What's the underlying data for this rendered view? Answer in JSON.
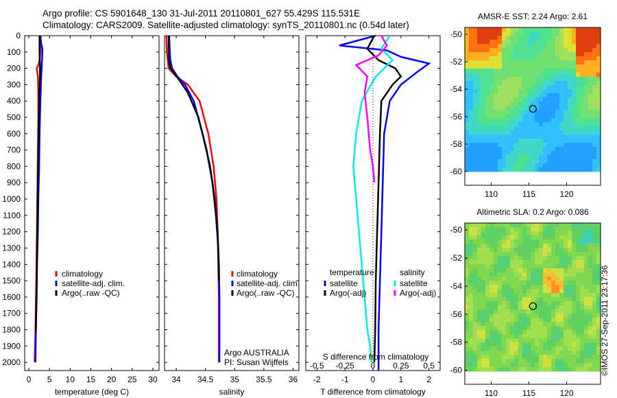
{
  "header": {
    "line1": "Argo profile: CS 5901648_130 31-Jul-2011 20110801_627 55.429S 115.531E",
    "line2": "Climatology: CARS2009. Satellite-adjusted climatology: synTS_20110801.nc (0.54d later)"
  },
  "credit": "©IMOS 27-Sep-2011 23:17:36",
  "chart_data": [
    {
      "type": "line",
      "panel": "temperature",
      "xlabel": "temperature (deg C)",
      "ylabel": "",
      "xlim": [
        -1,
        31.5
      ],
      "ylim": [
        2050,
        0
      ],
      "xticks": [
        0,
        5,
        10,
        15,
        20,
        25,
        30
      ],
      "yticks": [
        0,
        100,
        200,
        300,
        400,
        500,
        600,
        700,
        800,
        900,
        1000,
        1100,
        1200,
        1300,
        1400,
        1500,
        1600,
        1700,
        1800,
        1900,
        2000
      ],
      "legend": [
        "climatology",
        "satellite-adj. clim.",
        "Argo(..raw -QC)"
      ],
      "series": [
        {
          "name": "climatology",
          "color": "#ff0000",
          "x": [
            2.8,
            2.8,
            2.6,
            2.3,
            1.9,
            2.2,
            2.3,
            2.3,
            2.2,
            2.1,
            2.0,
            1.9,
            1.8,
            1.6,
            1.4
          ],
          "y": [
            0,
            100,
            150,
            180,
            200,
            250,
            350,
            500,
            700,
            900,
            1100,
            1300,
            1500,
            1800,
            2000
          ]
        },
        {
          "name": "satellite-adj. clim.",
          "color": "#0000ff",
          "x": [
            2.8,
            3.0,
            3.3,
            3.2,
            3.0,
            2.8,
            2.6,
            2.5,
            2.3,
            2.2,
            2.0,
            1.9,
            1.7,
            1.6
          ],
          "y": [
            0,
            50,
            80,
            150,
            250,
            400,
            600,
            800,
            1000,
            1200,
            1400,
            1600,
            1800,
            2000
          ]
        },
        {
          "name": "Argo(..raw -QC)",
          "color": "#000000",
          "x": [
            2.6,
            2.6,
            2.7,
            2.7,
            2.5,
            2.4,
            2.3,
            2.2,
            2.1,
            2.0,
            1.9,
            1.7
          ],
          "y": [
            0,
            100,
            180,
            250,
            350,
            500,
            700,
            900,
            1100,
            1300,
            1500,
            1820
          ]
        }
      ]
    },
    {
      "type": "line",
      "panel": "salinity",
      "xlabel": "salinity",
      "xlim": [
        33.8,
        36.1
      ],
      "ylim": [
        2050,
        0
      ],
      "xticks": [
        34,
        34.5,
        35,
        35.5,
        36
      ],
      "xticklabels": [
        "34",
        "34.5",
        "35",
        "35.5",
        "36"
      ],
      "legend": [
        "climatology",
        "satellite-adj. clim.",
        "Argo(..raw -QC)"
      ],
      "annotation": [
        "Argo AUSTRALIA",
        "PI: Susan Wijffels"
      ],
      "series": [
        {
          "name": "climatology",
          "color": "#ff0000",
          "x": [
            33.83,
            33.84,
            33.87,
            34.0,
            34.2,
            34.4,
            34.55,
            34.64,
            34.69,
            34.71,
            34.72,
            34.73,
            34.73,
            34.73
          ],
          "y": [
            0,
            100,
            200,
            250,
            300,
            400,
            600,
            800,
            1000,
            1200,
            1400,
            1600,
            1800,
            2000
          ]
        },
        {
          "name": "satellite-adj. clim.",
          "color": "#0000ff",
          "x": [
            33.88,
            33.89,
            33.9,
            33.93,
            34.02,
            34.15,
            34.3,
            34.45,
            34.58,
            34.66,
            34.71,
            34.73,
            34.74,
            34.74
          ],
          "y": [
            0,
            100,
            150,
            200,
            250,
            300,
            400,
            600,
            800,
            1000,
            1200,
            1400,
            1600,
            2000
          ]
        },
        {
          "name": "Argo(..raw -QC)",
          "color": "#000000",
          "x": [
            33.87,
            33.87,
            33.9,
            34.05,
            34.2,
            34.38,
            34.52,
            34.62,
            34.68,
            34.72,
            34.73
          ],
          "y": [
            0,
            150,
            200,
            270,
            350,
            500,
            700,
            900,
            1100,
            1300,
            1500
          ]
        }
      ]
    },
    {
      "type": "line",
      "panel": "difference",
      "xlabel": "T difference from climatology",
      "top_label": "S difference from climatology",
      "xlim": [
        -2.4,
        2.4
      ],
      "ylim": [
        2050,
        0
      ],
      "xticks": [
        -2,
        -1,
        0,
        1,
        2
      ],
      "sticks": [
        -0.5,
        -0.25,
        0,
        0.25,
        0.5
      ],
      "sticklabels": [
        "-0.5",
        "-0.25",
        "0",
        "0.25",
        "0.5"
      ],
      "legend_headers": [
        "temperature",
        "salinity"
      ],
      "legend": [
        "satellite",
        "Argo(-adj)",
        "satellite",
        "Argo(-adj)"
      ],
      "series": [
        {
          "name": "satellite",
          "group": "temperature",
          "color": "#0000ff",
          "x": [
            0.1,
            -1.2,
            0.5,
            1.0,
            2.0,
            1.6,
            1.0,
            0.6,
            0.4,
            0.35,
            0.3,
            0.25,
            0.2,
            0.2
          ],
          "y": [
            0,
            60,
            90,
            130,
            170,
            220,
            300,
            400,
            600,
            900,
            1200,
            1500,
            1800,
            2050
          ]
        },
        {
          "name": "Argo(-adj)",
          "group": "temperature",
          "color": "#000000",
          "x": [
            0.05,
            -0.2,
            0.2,
            0.8,
            1.0,
            0.7,
            0.3,
            0.25,
            0.2,
            0.15,
            0.1,
            0.08,
            0.05
          ],
          "y": [
            0,
            80,
            150,
            200,
            250,
            300,
            400,
            600,
            900,
            1200,
            1500,
            1800,
            2000
          ]
        },
        {
          "name": "satellite",
          "group": "salinity",
          "color": "#00eeee",
          "x": [
            0.6,
            0.3,
            0.7,
            0.1,
            -0.4,
            -0.6,
            -0.7,
            -0.6,
            -0.5,
            -0.4,
            -0.3,
            -0.2,
            -0.1,
            -0.05
          ],
          "y": [
            0,
            80,
            150,
            250,
            400,
            600,
            800,
            1000,
            1200,
            1400,
            1600,
            1800,
            1900,
            2000
          ]
        },
        {
          "name": "Argo(-adj)",
          "group": "salinity",
          "color": "#ff00ff",
          "x": [
            0.3,
            0.5,
            0.2,
            -0.6,
            -0.2,
            -0.3,
            -0.2,
            -0.1,
            0.0,
            0.05
          ],
          "y": [
            0,
            60,
            120,
            180,
            250,
            350,
            500,
            700,
            800,
            900
          ]
        }
      ]
    },
    {
      "type": "heatmap",
      "panel": "sst_map",
      "title": "AMSR-E SST: 2.24  Argo: 2.61",
      "xlim": [
        106.5,
        124.5
      ],
      "ylim": [
        -61,
        -49.5
      ],
      "xticks": [
        110,
        115,
        120
      ],
      "yticks": [
        -50,
        -52,
        -54,
        -56,
        -58,
        -60
      ],
      "marker": {
        "lon": 115.53,
        "lat": -55.43
      }
    },
    {
      "type": "heatmap",
      "panel": "sla_map",
      "title": "Altimetric SLA: 0.2  Argo: 0.086",
      "xlim": [
        106.5,
        124.5
      ],
      "ylim": [
        -61,
        -49.5
      ],
      "xticks": [
        110,
        115,
        120
      ],
      "yticks": [
        -50,
        -52,
        -54,
        -56,
        -58,
        -60
      ],
      "marker": {
        "lon": 115.53,
        "lat": -55.43
      }
    }
  ]
}
